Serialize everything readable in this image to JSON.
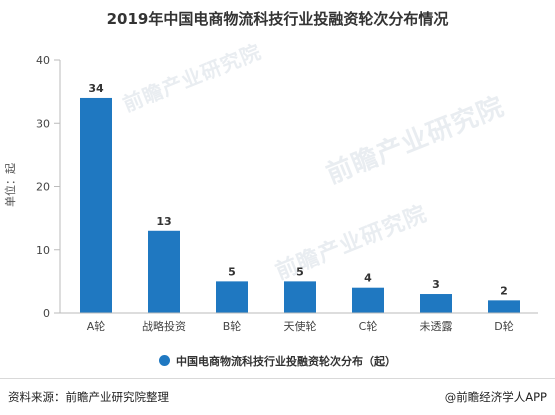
{
  "title": "2019年中国电商物流科技行业投融资轮次分布情况",
  "chart_data": {
    "type": "bar",
    "categories": [
      "A轮",
      "战略投资",
      "B轮",
      "天使轮",
      "C轮",
      "未透露",
      "D轮"
    ],
    "values": [
      34,
      13,
      5,
      5,
      4,
      3,
      2
    ],
    "ylabel": "单位：起",
    "ylim": [
      0,
      40
    ],
    "yticks": [
      0,
      10,
      20,
      30,
      40
    ],
    "series_name": "中国电商物流科技行业投融资轮次分布（起）",
    "bar_color": "#1f78c1",
    "grid": false,
    "legend_position": "bottom"
  },
  "watermarks": [
    "前瞻产业研究院",
    "前瞻产业研究院",
    "前瞻产业研究院"
  ],
  "footer": {
    "source": "资料来源：前瞻产业研究院整理",
    "credit": "@前瞻经济学人APP"
  }
}
